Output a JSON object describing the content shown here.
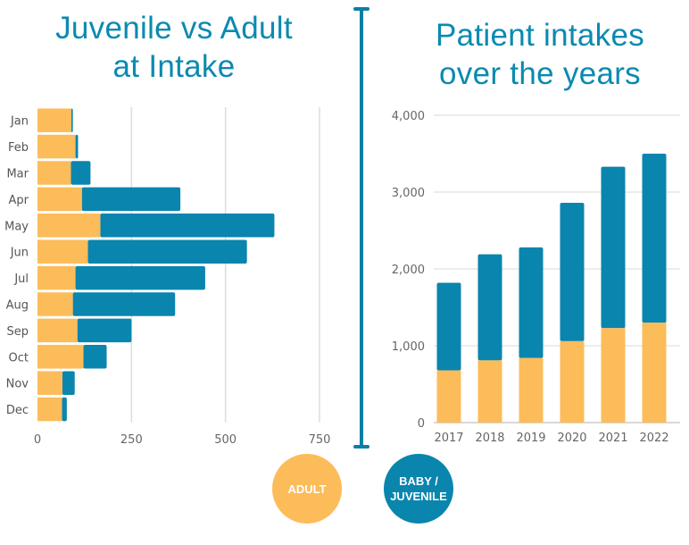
{
  "colors": {
    "adult": "#fcbc5a",
    "juvenile": "#0a85ad",
    "title": "#0a8ab0",
    "grid": "#dddddd",
    "tick": "#666666"
  },
  "legend": {
    "adult_label": "ADULT",
    "juvenile_label_line1": "BABY /",
    "juvenile_label_line2": "JUVENILE"
  },
  "chart_data": [
    {
      "type": "bar",
      "orientation": "horizontal",
      "stacked": true,
      "title": "Juvenile vs Adult at Intake",
      "categories": [
        "Jan",
        "Feb",
        "Mar",
        "Apr",
        "May",
        "Jun",
        "Jul",
        "Aug",
        "Sep",
        "Oct",
        "Nov",
        "Dec"
      ],
      "series": [
        {
          "name": "Adult",
          "values": [
            90,
            101,
            89,
            118,
            167,
            134,
            101,
            94,
            106,
            122,
            66,
            65
          ]
        },
        {
          "name": "Baby / Juvenile",
          "values": [
            4,
            7,
            52,
            262,
            463,
            423,
            345,
            272,
            144,
            62,
            33,
            13
          ]
        }
      ],
      "xlim": [
        0,
        750
      ],
      "xticks": [
        "0",
        "250",
        "500",
        "750"
      ],
      "xlabel": "",
      "ylabel": "",
      "grid": true
    },
    {
      "type": "bar",
      "orientation": "vertical",
      "stacked": true,
      "title": "Patient intakes over the years",
      "categories": [
        "2017",
        "2018",
        "2019",
        "2020",
        "2021",
        "2022"
      ],
      "series": [
        {
          "name": "Adult",
          "values": [
            680,
            810,
            840,
            1060,
            1230,
            1300
          ]
        },
        {
          "name": "Baby / Juvenile",
          "values": [
            1140,
            1380,
            1440,
            1800,
            2100,
            2200
          ]
        }
      ],
      "ylim": [
        0,
        4000
      ],
      "yticks": [
        "0",
        "1,000",
        "2,000",
        "3,000",
        "4,000"
      ],
      "xlabel": "",
      "ylabel": "",
      "grid": true
    }
  ]
}
